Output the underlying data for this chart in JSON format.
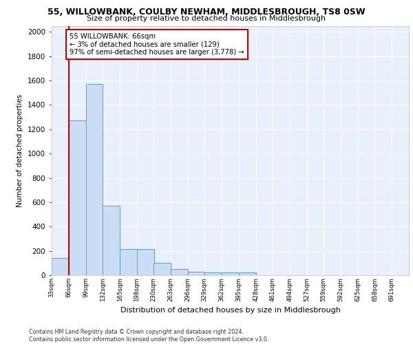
{
  "title1": "55, WILLOWBANK, COULBY NEWHAM, MIDDLESBROUGH, TS8 0SW",
  "title2": "Size of property relative to detached houses in Middlesbrough",
  "xlabel": "Distribution of detached houses by size in Middlesbrough",
  "ylabel": "Number of detached properties",
  "bin_labels": [
    "33sqm",
    "66sqm",
    "99sqm",
    "132sqm",
    "165sqm",
    "198sqm",
    "230sqm",
    "263sqm",
    "296sqm",
    "329sqm",
    "362sqm",
    "395sqm",
    "428sqm",
    "461sqm",
    "494sqm",
    "527sqm",
    "559sqm",
    "592sqm",
    "625sqm",
    "658sqm",
    "691sqm"
  ],
  "bar_values": [
    140,
    1270,
    1570,
    570,
    215,
    215,
    100,
    50,
    30,
    20,
    20,
    20,
    0,
    0,
    0,
    0,
    0,
    0,
    0,
    0
  ],
  "bin_edges": [
    33,
    66,
    99,
    132,
    165,
    198,
    230,
    263,
    296,
    329,
    362,
    395,
    428,
    461,
    494,
    527,
    559,
    592,
    625,
    658,
    691
  ],
  "bar_color": "#c9ddf5",
  "bar_edge_color": "#5b9bd5",
  "vline_x": 66,
  "vline_color": "#cc0000",
  "annotation_text": "55 WILLOWBANK: 66sqm\n← 3% of detached houses are smaller (129)\n97% of semi-detached houses are larger (3,778) →",
  "annotation_box_color": "#ffffff",
  "annotation_box_edge": "#cc0000",
  "ylim": [
    0,
    2050
  ],
  "yticks": [
    0,
    200,
    400,
    600,
    800,
    1000,
    1200,
    1400,
    1600,
    1800,
    2000
  ],
  "bg_color": "#e8f0fb",
  "grid_color": "#ffffff",
  "footer": "Contains HM Land Registry data © Crown copyright and database right 2024.\nContains public sector information licensed under the Open Government Licence v3.0."
}
